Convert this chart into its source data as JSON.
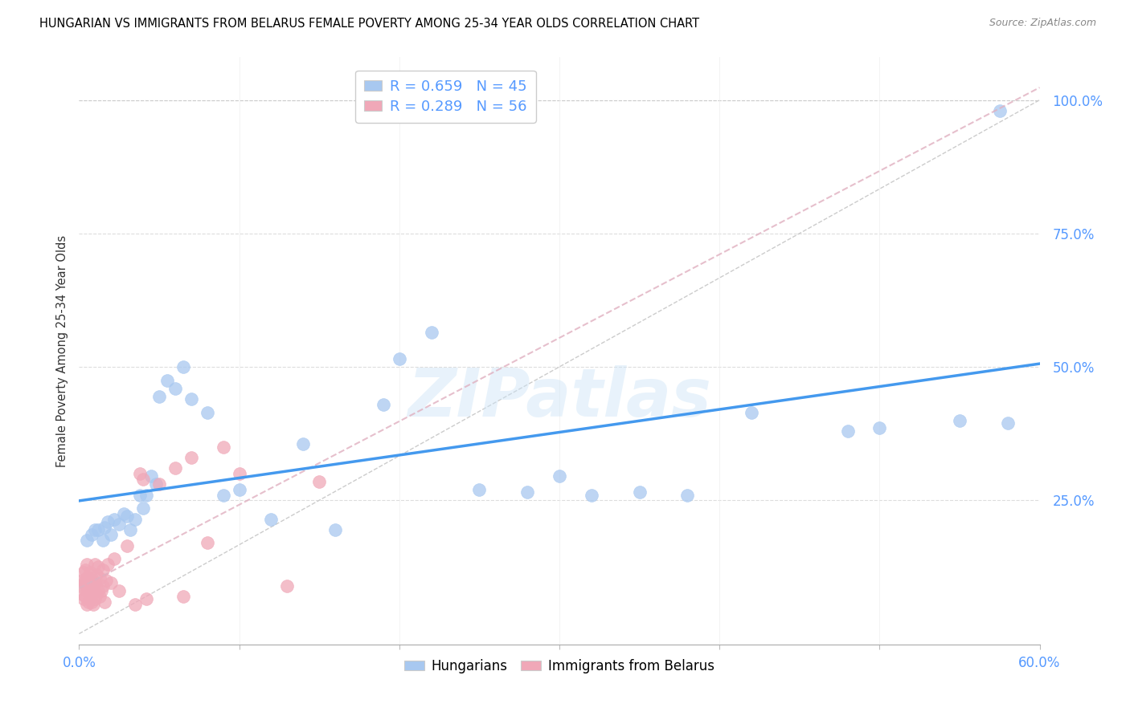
{
  "title": "HUNGARIAN VS IMMIGRANTS FROM BELARUS FEMALE POVERTY AMONG 25-34 YEAR OLDS CORRELATION CHART",
  "source": "Source: ZipAtlas.com",
  "ylabel": "Female Poverty Among 25-34 Year Olds",
  "y_ticks": [
    0.0,
    0.25,
    0.5,
    0.75,
    1.0
  ],
  "y_tick_labels": [
    "",
    "25.0%",
    "50.0%",
    "75.0%",
    "100.0%"
  ],
  "xlim": [
    0.0,
    0.6
  ],
  "ylim": [
    -0.02,
    1.08
  ],
  "legend_r1": "R = 0.659",
  "legend_n1": "N = 45",
  "legend_r2": "R = 0.289",
  "legend_n2": "N = 56",
  "color_hungarian": "#a8c8f0",
  "color_belarus": "#f0a8b8",
  "color_line_hungarian": "#4499ee",
  "color_ref_line": "#e0b0c0",
  "color_ticks_right": "#5599ff",
  "color_ticks_bottom": "#5599ff",
  "watermark": "ZIPatlas",
  "hungarian_x": [
    0.005,
    0.008,
    0.01,
    0.012,
    0.015,
    0.016,
    0.018,
    0.02,
    0.022,
    0.025,
    0.028,
    0.03,
    0.032,
    0.035,
    0.038,
    0.04,
    0.042,
    0.045,
    0.048,
    0.05,
    0.055,
    0.06,
    0.065,
    0.07,
    0.08,
    0.09,
    0.1,
    0.12,
    0.14,
    0.16,
    0.19,
    0.2,
    0.22,
    0.25,
    0.28,
    0.3,
    0.32,
    0.35,
    0.38,
    0.42,
    0.48,
    0.5,
    0.55,
    0.575,
    0.58
  ],
  "hungarian_y": [
    0.175,
    0.185,
    0.195,
    0.195,
    0.175,
    0.2,
    0.21,
    0.185,
    0.215,
    0.205,
    0.225,
    0.22,
    0.195,
    0.215,
    0.26,
    0.235,
    0.26,
    0.295,
    0.28,
    0.445,
    0.475,
    0.46,
    0.5,
    0.44,
    0.415,
    0.26,
    0.27,
    0.215,
    0.355,
    0.195,
    0.43,
    0.515,
    0.565,
    0.27,
    0.265,
    0.295,
    0.26,
    0.265,
    0.26,
    0.415,
    0.38,
    0.385,
    0.4,
    0.98,
    0.395
  ],
  "belarus_x": [
    0.001,
    0.002,
    0.002,
    0.003,
    0.003,
    0.003,
    0.004,
    0.004,
    0.004,
    0.005,
    0.005,
    0.005,
    0.005,
    0.006,
    0.006,
    0.006,
    0.007,
    0.007,
    0.007,
    0.008,
    0.008,
    0.008,
    0.009,
    0.009,
    0.01,
    0.01,
    0.01,
    0.011,
    0.011,
    0.012,
    0.012,
    0.013,
    0.013,
    0.014,
    0.015,
    0.015,
    0.016,
    0.017,
    0.018,
    0.02,
    0.022,
    0.025,
    0.03,
    0.035,
    0.038,
    0.04,
    0.042,
    0.05,
    0.06,
    0.065,
    0.07,
    0.08,
    0.09,
    0.1,
    0.13,
    0.15
  ],
  "belarus_y": [
    0.09,
    0.075,
    0.1,
    0.065,
    0.095,
    0.115,
    0.07,
    0.095,
    0.12,
    0.055,
    0.08,
    0.105,
    0.13,
    0.06,
    0.085,
    0.105,
    0.065,
    0.09,
    0.115,
    0.06,
    0.085,
    0.105,
    0.055,
    0.09,
    0.065,
    0.095,
    0.13,
    0.075,
    0.11,
    0.08,
    0.125,
    0.07,
    0.105,
    0.08,
    0.09,
    0.12,
    0.06,
    0.1,
    0.13,
    0.095,
    0.14,
    0.08,
    0.165,
    0.055,
    0.3,
    0.29,
    0.065,
    0.28,
    0.31,
    0.07,
    0.33,
    0.17,
    0.35,
    0.3,
    0.09,
    0.285
  ]
}
